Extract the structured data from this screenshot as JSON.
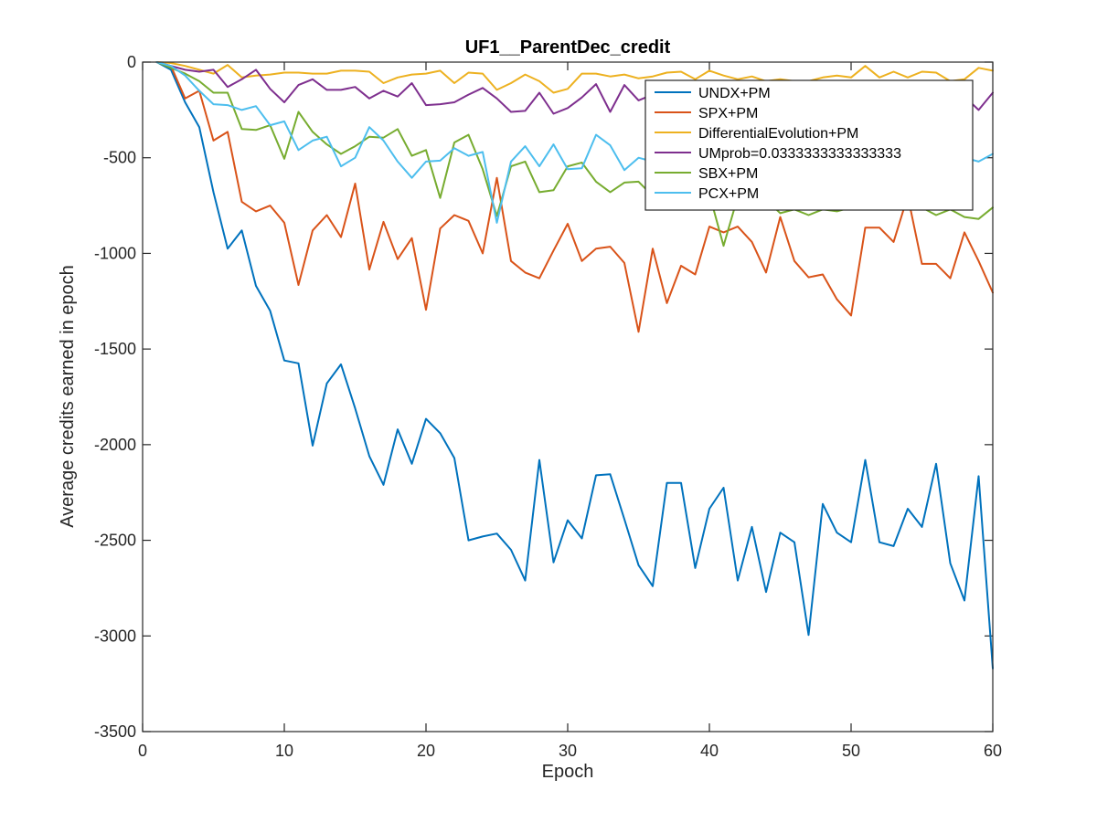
{
  "chart_data": {
    "type": "line",
    "title": "UF1__ParentDec_credit",
    "xlabel": "Epoch",
    "ylabel": "Average credits earned in epoch",
    "xlim": [
      0,
      60
    ],
    "ylim": [
      -3500,
      0
    ],
    "xticks": [
      "0",
      "10",
      "20",
      "30",
      "40",
      "50",
      "60"
    ],
    "yticks": [
      "0",
      "-500",
      "-1000",
      "-1500",
      "-2000",
      "-2500",
      "-3000",
      "-3500"
    ],
    "grid": false,
    "legend_position": "top-right",
    "x": [
      1,
      2,
      3,
      4,
      5,
      6,
      7,
      8,
      9,
      10,
      11,
      12,
      13,
      14,
      15,
      16,
      17,
      18,
      19,
      20,
      21,
      22,
      23,
      24,
      25,
      26,
      27,
      28,
      29,
      30,
      31,
      32,
      33,
      34,
      35,
      36,
      37,
      38,
      39,
      40,
      41,
      42,
      43,
      44,
      45,
      46,
      47,
      48,
      49,
      50,
      51,
      52,
      53,
      54,
      55,
      56,
      57,
      58,
      59,
      60
    ],
    "series": [
      {
        "name": "UNDX+PM",
        "color": "#0072BD",
        "values": [
          0,
          -40,
          -210,
          -340,
          -680,
          -975,
          -880,
          -1170,
          -1300,
          -1560,
          -1575,
          -2005,
          -1680,
          -1580,
          -1810,
          -2060,
          -2210,
          -1920,
          -2100,
          -1865,
          -1940,
          -2070,
          -2500,
          -2480,
          -2465,
          -2550,
          -2710,
          -2080,
          -2615,
          -2395,
          -2490,
          -2160,
          -2155,
          -2390,
          -2630,
          -2740,
          -2200,
          -2200,
          -2645,
          -2335,
          -2225,
          -2710,
          -2430,
          -2770,
          -2460,
          -2510,
          -2995,
          -2310,
          -2460,
          -2510,
          -2080,
          -2510,
          -2530,
          -2335,
          -2430,
          -2100,
          -2620,
          -2815,
          -2165,
          -3170
        ]
      },
      {
        "name": "SPX+PM",
        "color": "#D95319",
        "values": [
          0,
          -20,
          -190,
          -150,
          -410,
          -365,
          -730,
          -780,
          -750,
          -840,
          -1165,
          -880,
          -800,
          -915,
          -635,
          -1085,
          -835,
          -1030,
          -920,
          -1295,
          -870,
          -800,
          -830,
          -1000,
          -605,
          -1040,
          -1100,
          -1130,
          -985,
          -845,
          -1040,
          -975,
          -965,
          -1050,
          -1410,
          -975,
          -1260,
          -1065,
          -1110,
          -860,
          -890,
          -860,
          -940,
          -1100,
          -810,
          -1040,
          -1125,
          -1110,
          -1240,
          -1325,
          -865,
          -865,
          -940,
          -700,
          -1055,
          -1055,
          -1130,
          -890,
          -1040,
          -1205
        ]
      },
      {
        "name": "DifferentialEvolution+PM",
        "color": "#EDB120",
        "values": [
          0,
          -5,
          -20,
          -40,
          -60,
          -15,
          -80,
          -70,
          -65,
          -55,
          -55,
          -60,
          -60,
          -45,
          -45,
          -50,
          -110,
          -80,
          -65,
          -60,
          -45,
          -110,
          -55,
          -60,
          -145,
          -110,
          -65,
          -100,
          -160,
          -140,
          -60,
          -60,
          -75,
          -65,
          -85,
          -75,
          -55,
          -50,
          -90,
          -45,
          -70,
          -90,
          -75,
          -100,
          -90,
          -100,
          -100,
          -80,
          -70,
          -80,
          -20,
          -80,
          -50,
          -80,
          -50,
          -55,
          -100,
          -90,
          -30,
          -45
        ]
      },
      {
        "name": "UMprob=0.0333333333333333",
        "color": "#7E2F8E",
        "values": [
          0,
          -20,
          -40,
          -50,
          -40,
          -130,
          -90,
          -40,
          -140,
          -210,
          -120,
          -90,
          -145,
          -145,
          -130,
          -190,
          -150,
          -180,
          -110,
          -225,
          -220,
          -210,
          -170,
          -135,
          -190,
          -260,
          -255,
          -160,
          -270,
          -240,
          -185,
          -115,
          -260,
          -120,
          -200,
          -170,
          -200,
          -180,
          -220,
          -200,
          -180,
          -200,
          -190,
          -200,
          -210,
          -200,
          -190,
          -200,
          -200,
          -200,
          -190,
          -190,
          -200,
          -200,
          -200,
          -180,
          -200,
          -180,
          -250,
          -160
        ]
      },
      {
        "name": "SBX+PM",
        "color": "#77AC30",
        "values": [
          0,
          -30,
          -60,
          -100,
          -160,
          -160,
          -350,
          -355,
          -330,
          -505,
          -260,
          -365,
          -430,
          -480,
          -440,
          -390,
          -395,
          -350,
          -490,
          -460,
          -710,
          -420,
          -380,
          -560,
          -805,
          -545,
          -520,
          -680,
          -670,
          -545,
          -525,
          -625,
          -680,
          -630,
          -625,
          -700,
          -710,
          -720,
          -705,
          -690,
          -960,
          -705,
          -700,
          -720,
          -790,
          -770,
          -800,
          -770,
          -780,
          -760,
          -740,
          -720,
          -740,
          -770,
          -760,
          -800,
          -770,
          -810,
          -820,
          -760
        ]
      },
      {
        "name": "PCX+PM",
        "color": "#4DBEEE",
        "values": [
          0,
          -20,
          -70,
          -150,
          -220,
          -225,
          -250,
          -230,
          -330,
          -310,
          -460,
          -410,
          -390,
          -545,
          -500,
          -340,
          -410,
          -520,
          -605,
          -520,
          -515,
          -450,
          -490,
          -470,
          -840,
          -520,
          -440,
          -545,
          -430,
          -560,
          -555,
          -380,
          -435,
          -565,
          -500,
          -520,
          -500,
          -490,
          -510,
          -505,
          -495,
          -500,
          -490,
          -500,
          -495,
          -505,
          -500,
          -495,
          -500,
          -495,
          -500,
          -490,
          -500,
          -505,
          -500,
          -495,
          -500,
          -500,
          -520,
          -480
        ]
      }
    ]
  }
}
